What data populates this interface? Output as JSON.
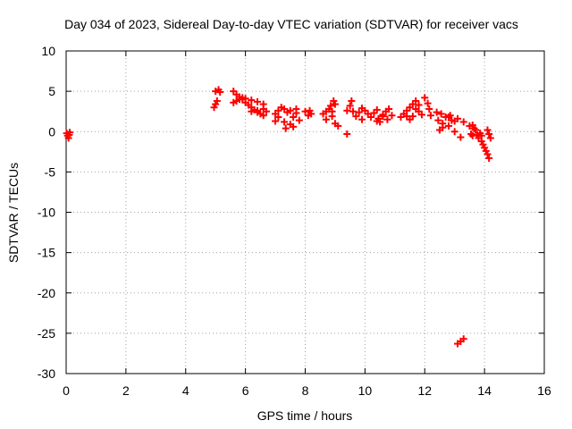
{
  "chart_data": {
    "type": "scatter",
    "title": "Day 034 of 2023, Sidereal Day-to-day VTEC variation (SDTVAR) for receiver vacs",
    "xlabel": "GPS time / hours",
    "ylabel": "SDTVAR / TECUs",
    "xlim": [
      0,
      16
    ],
    "ylim": [
      -30,
      10
    ],
    "xticks": [
      "0",
      "2",
      "4",
      "6",
      "8",
      "10",
      "12",
      "14",
      "16"
    ],
    "yticks": [
      "10",
      "5",
      "0",
      "-5",
      "-10",
      "-15",
      "-20",
      "-25",
      "-30"
    ],
    "grid": true,
    "marker": "plus",
    "series": [
      {
        "name": "SDTVAR",
        "color": "#ff0000",
        "points": [
          [
            0.02,
            -0.2
          ],
          [
            0.05,
            -0.5
          ],
          [
            0.08,
            -0.8
          ],
          [
            0.1,
            -0.4
          ],
          [
            0.12,
            -0.1
          ],
          [
            4.95,
            3.0
          ],
          [
            5.0,
            3.4
          ],
          [
            5.05,
            3.8
          ],
          [
            5.0,
            5.0
          ],
          [
            5.1,
            5.2
          ],
          [
            5.15,
            4.9
          ],
          [
            5.6,
            5.0
          ],
          [
            5.7,
            4.6
          ],
          [
            5.8,
            4.3
          ],
          [
            5.9,
            4.0
          ],
          [
            6.0,
            3.6
          ],
          [
            6.1,
            3.3
          ],
          [
            6.2,
            3.0
          ],
          [
            6.3,
            2.7
          ],
          [
            6.4,
            2.4
          ],
          [
            6.5,
            2.2
          ],
          [
            6.6,
            2.0
          ],
          [
            5.6,
            3.6
          ],
          [
            5.7,
            3.8
          ],
          [
            5.8,
            4.0
          ],
          [
            5.9,
            4.2
          ],
          [
            6.0,
            4.1
          ],
          [
            6.2,
            3.9
          ],
          [
            6.4,
            3.7
          ],
          [
            6.6,
            3.4
          ],
          [
            6.2,
            2.5
          ],
          [
            6.4,
            2.6
          ],
          [
            6.6,
            2.8
          ],
          [
            6.7,
            2.5
          ],
          [
            7.0,
            1.3
          ],
          [
            7.0,
            2.2
          ],
          [
            7.1,
            2.6
          ],
          [
            7.2,
            3.0
          ],
          [
            7.3,
            1.2
          ],
          [
            7.35,
            0.4
          ],
          [
            7.4,
            2.4
          ],
          [
            7.5,
            0.9
          ],
          [
            7.6,
            1.8
          ],
          [
            7.7,
            2.3
          ],
          [
            7.8,
            1.4
          ],
          [
            7.3,
            2.8
          ],
          [
            7.5,
            2.6
          ],
          [
            7.7,
            2.8
          ],
          [
            7.1,
            1.8
          ],
          [
            7.6,
            0.6
          ],
          [
            8.0,
            2.5
          ],
          [
            8.1,
            2.0
          ],
          [
            8.15,
            2.6
          ],
          [
            8.2,
            2.2
          ],
          [
            8.6,
            2.2
          ],
          [
            8.7,
            1.5
          ],
          [
            8.8,
            2.8
          ],
          [
            8.85,
            3.2
          ],
          [
            8.9,
            2.5
          ],
          [
            9.0,
            3.4
          ],
          [
            9.0,
            1.0
          ],
          [
            9.1,
            0.7
          ],
          [
            8.95,
            3.8
          ],
          [
            8.7,
            2.5
          ],
          [
            8.9,
            1.9
          ],
          [
            9.4,
            2.6
          ],
          [
            9.4,
            -0.3
          ],
          [
            9.5,
            3.2
          ],
          [
            9.55,
            3.8
          ],
          [
            9.6,
            2.5
          ],
          [
            9.7,
            1.9
          ],
          [
            9.8,
            2.4
          ],
          [
            9.9,
            1.5
          ],
          [
            9.9,
            2.9
          ],
          [
            10.0,
            2.6
          ],
          [
            10.1,
            2.2
          ],
          [
            10.2,
            1.8
          ],
          [
            10.3,
            2.3
          ],
          [
            10.4,
            2.7
          ],
          [
            10.45,
            1.6
          ],
          [
            10.5,
            1.2
          ],
          [
            10.6,
            2.1
          ],
          [
            10.7,
            2.5
          ],
          [
            10.75,
            1.5
          ],
          [
            10.8,
            2.8
          ],
          [
            10.9,
            2.0
          ],
          [
            10.4,
            1.3
          ],
          [
            10.6,
            1.9
          ],
          [
            11.2,
            1.8
          ],
          [
            11.3,
            2.2
          ],
          [
            11.4,
            2.6
          ],
          [
            11.5,
            3.0
          ],
          [
            11.6,
            3.4
          ],
          [
            11.7,
            3.8
          ],
          [
            11.8,
            2.5
          ],
          [
            11.9,
            2.1
          ],
          [
            11.5,
            1.5
          ],
          [
            11.6,
            1.9
          ],
          [
            11.7,
            2.8
          ],
          [
            11.8,
            3.3
          ],
          [
            11.4,
            1.9
          ],
          [
            12.0,
            4.2
          ],
          [
            12.1,
            3.5
          ],
          [
            12.15,
            2.8
          ],
          [
            12.2,
            2.0
          ],
          [
            12.4,
            2.4
          ],
          [
            12.45,
            1.4
          ],
          [
            12.5,
            0.2
          ],
          [
            12.55,
            2.2
          ],
          [
            12.6,
            1.0
          ],
          [
            12.7,
            1.8
          ],
          [
            12.8,
            0.7
          ],
          [
            12.85,
            2.0
          ],
          [
            12.9,
            1.4
          ],
          [
            13.0,
            0.0
          ],
          [
            13.1,
            1.6
          ],
          [
            13.2,
            -0.7
          ],
          [
            13.3,
            1.2
          ],
          [
            12.6,
            0.5
          ],
          [
            12.8,
            1.8
          ],
          [
            13.0,
            1.3
          ],
          [
            13.5,
            0.7
          ],
          [
            13.55,
            -0.3
          ],
          [
            13.6,
            -0.5
          ],
          [
            13.6,
            0.8
          ],
          [
            13.65,
            0.4
          ],
          [
            13.7,
            0.2
          ],
          [
            13.75,
            -0.4
          ],
          [
            13.8,
            -0.8
          ],
          [
            13.85,
            -0.2
          ],
          [
            13.9,
            -1.2
          ],
          [
            13.95,
            -1.6
          ],
          [
            14.0,
            -2.0
          ],
          [
            14.05,
            -2.4
          ],
          [
            14.1,
            -2.8
          ],
          [
            14.15,
            -3.3
          ],
          [
            14.1,
            0.2
          ],
          [
            14.15,
            -0.3
          ],
          [
            14.2,
            -0.8
          ],
          [
            13.9,
            -0.5
          ],
          [
            13.1,
            -26.3
          ],
          [
            13.2,
            -26.0
          ],
          [
            13.3,
            -25.7
          ]
        ]
      }
    ]
  }
}
